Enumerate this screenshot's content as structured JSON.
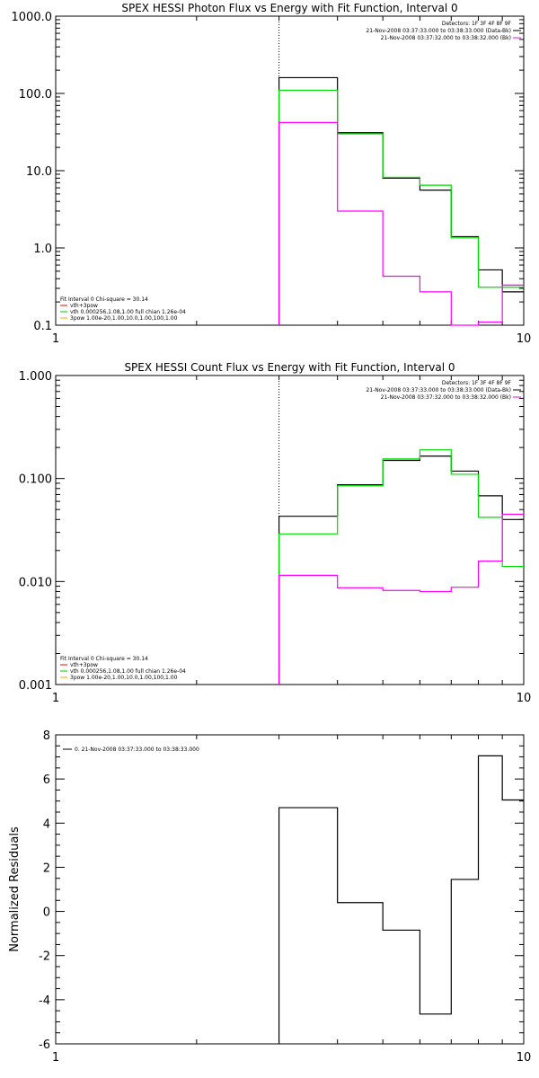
{
  "chart_data": [
    {
      "type": "line",
      "title": "SPEX HESSI Photon Flux vs Energy with Fit Function, Interval 0",
      "xscale": "log",
      "yscale": "log",
      "xlim": [
        1,
        10
      ],
      "ylim": [
        0.1,
        1000
      ],
      "xticks": [
        "1",
        "10"
      ],
      "yticks": [
        "0.1",
        "1.0",
        "10.0",
        "100.0",
        "1000.0"
      ],
      "legend_top_right": [
        "Detectors: 1F 3F 4F 8F 9F",
        "21-Nov-2008 03:37:33.000 to 03:38:33.000 (Data-Bk)",
        "21-Nov-2008 03:37:32.000 to 03:38:32.000 (Bk)"
      ],
      "legend_top_colors": [
        "#000000",
        "#000000",
        "#ff00ff"
      ],
      "legend_bottom_left": [
        "Fit Interval 0   Chi-square = 30.14",
        "vth+3pow",
        "vth 0.000256,1.08,1.00  full chian 1.26e-04",
        "3pow 1.00e-20,1.00,10.0,1.00,100,1.00"
      ],
      "legend_bottom_colors": [
        "#000000",
        "#ff0000",
        "#00cc00",
        "#ffa500"
      ],
      "vline_x": 3,
      "series": [
        {
          "color": "#000000",
          "edges": [
            3,
            4,
            5,
            6,
            7,
            8,
            9,
            10
          ],
          "values": [
            160,
            31,
            8,
            5.6,
            1.4,
            0.52,
            0.27
          ]
        },
        {
          "color": "#00dd00",
          "edges": [
            3,
            4,
            5,
            6,
            7,
            8,
            9,
            10
          ],
          "values": [
            110,
            30,
            8.2,
            6.5,
            1.35,
            0.31,
            0.31
          ]
        },
        {
          "color": "#ff00ff",
          "edges": [
            3,
            4,
            5,
            6,
            7,
            8,
            9,
            10
          ],
          "values": [
            42,
            3,
            0.43,
            0.27,
            0.1,
            0.11,
            0.33
          ]
        }
      ]
    },
    {
      "type": "line",
      "title": "SPEX HESSI Count Flux vs Energy with Fit Function, Interval 0",
      "xscale": "log",
      "yscale": "log",
      "xlim": [
        1,
        10
      ],
      "ylim": [
        0.001,
        1
      ],
      "xticks": [
        "1",
        "10"
      ],
      "yticks": [
        "0.001",
        "0.010",
        "0.100",
        "1.000"
      ],
      "legend_top_right": [
        "Detectors: 1F 3F 4F 8F 9F",
        "21-Nov-2008 03:37:33.000 to 03:38:33.000 (Data-Bk)",
        "21-Nov-2008 03:37:32.000 to 03:38:32.000 (Bk)"
      ],
      "legend_top_colors": [
        "#000000",
        "#000000",
        "#ff00ff"
      ],
      "legend_bottom_left": [
        "Fit Interval 0   Chi-square = 30.14",
        "vth+3pow",
        "vth 0.000256,1.08,1.00  full chian 1.26e-04",
        "3pow 1.00e-20,1.00,10.0,1.00,100,1.00"
      ],
      "legend_bottom_colors": [
        "#000000",
        "#ff0000",
        "#00cc00",
        "#ffa500"
      ],
      "vline_x": 3,
      "series": [
        {
          "color": "#000000",
          "edges": [
            3,
            4,
            5,
            6,
            7,
            8,
            9,
            10
          ],
          "values": [
            0.043,
            0.087,
            0.15,
            0.165,
            0.118,
            0.068,
            0.04
          ]
        },
        {
          "color": "#00dd00",
          "edges": [
            3,
            4,
            5,
            6,
            7,
            8,
            9,
            10
          ],
          "values": [
            0.029,
            0.085,
            0.155,
            0.19,
            0.11,
            0.042,
            0.014
          ]
        },
        {
          "color": "#ff00ff",
          "edges": [
            3,
            4,
            5,
            6,
            7,
            8,
            9,
            10
          ],
          "values": [
            0.0115,
            0.0087,
            0.0082,
            0.008,
            0.0088,
            0.0158,
            0.045
          ]
        }
      ]
    },
    {
      "type": "line",
      "title": "",
      "xscale": "log",
      "yscale": "linear",
      "xlim": [
        1,
        10
      ],
      "ylim": [
        -6,
        8
      ],
      "xticks": [
        "1",
        "10"
      ],
      "yticks": [
        "-6",
        "-4",
        "-2",
        "0",
        "2",
        "4",
        "6",
        "8"
      ],
      "ylabel": "Normalized Residuals",
      "legend_top_left": [
        "0. 21-Nov-2008 03:37:33.000 to 03:38:33.000"
      ],
      "series": [
        {
          "color": "#000000",
          "edges": [
            3,
            4,
            5,
            6,
            7,
            8,
            9,
            10
          ],
          "values": [
            4.7,
            0.4,
            -0.85,
            -4.65,
            1.45,
            7.05,
            5.05
          ]
        }
      ]
    }
  ]
}
